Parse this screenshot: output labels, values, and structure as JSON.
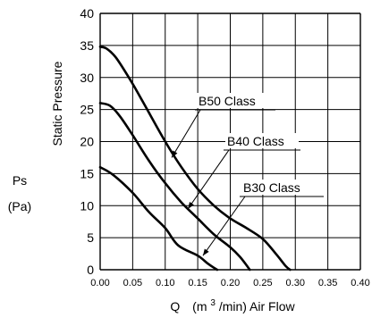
{
  "chart_data": {
    "type": "line",
    "title": "",
    "xlabel": {
      "symbol": "Q",
      "unit_pre": "(m",
      "unit_sup": "3",
      "unit_post": "/min) Air Flow"
    },
    "ylabel": {
      "name": "Static Pressure",
      "symbol": "Ps",
      "unit": "(Pa)"
    },
    "xlim": [
      0,
      0.4
    ],
    "ylim": [
      0,
      40
    ],
    "grid": true,
    "x_ticks": [
      "0.00",
      "0.05",
      "0.10",
      "0.15",
      "0.20",
      "0.25",
      "0.30",
      "0.35",
      "0.40"
    ],
    "y_ticks": [
      "0",
      "5",
      "10",
      "15",
      "20",
      "25",
      "30",
      "35",
      "40"
    ],
    "x_tick_values": [
      0,
      0.05,
      0.1,
      0.15,
      0.2,
      0.25,
      0.3,
      0.35,
      0.4
    ],
    "y_tick_values": [
      0,
      5,
      10,
      15,
      20,
      25,
      30,
      35,
      40
    ],
    "series": [
      {
        "name": "B50 Class",
        "x": [
          0,
          0.01,
          0.025,
          0.05,
          0.075,
          0.1,
          0.125,
          0.15,
          0.175,
          0.2,
          0.225,
          0.25,
          0.27,
          0.285,
          0.292
        ],
        "y": [
          34.8,
          34.5,
          33.0,
          29.0,
          24.5,
          20.0,
          16.0,
          12.6,
          10.0,
          8.0,
          6.5,
          4.8,
          2.5,
          0.6,
          0
        ],
        "label_at": [
          0.11,
          17.5
        ]
      },
      {
        "name": "B40 Class",
        "x": [
          0,
          0.015,
          0.03,
          0.05,
          0.075,
          0.1,
          0.125,
          0.15,
          0.175,
          0.2,
          0.215,
          0.225,
          0.23
        ],
        "y": [
          26.0,
          25.6,
          24.0,
          21.0,
          17.0,
          13.5,
          10.5,
          8.0,
          5.5,
          3.5,
          2.0,
          0.7,
          0
        ],
        "label_at": [
          0.135,
          9.5
        ]
      },
      {
        "name": "B30 Class",
        "x": [
          0,
          0.02,
          0.05,
          0.075,
          0.1,
          0.12,
          0.15,
          0.165,
          0.175,
          0.18
        ],
        "y": [
          16.0,
          14.8,
          12.0,
          9.0,
          6.5,
          3.8,
          2.2,
          1.0,
          0.3,
          0
        ],
        "label_at": [
          0.158,
          2.2
        ]
      }
    ]
  }
}
